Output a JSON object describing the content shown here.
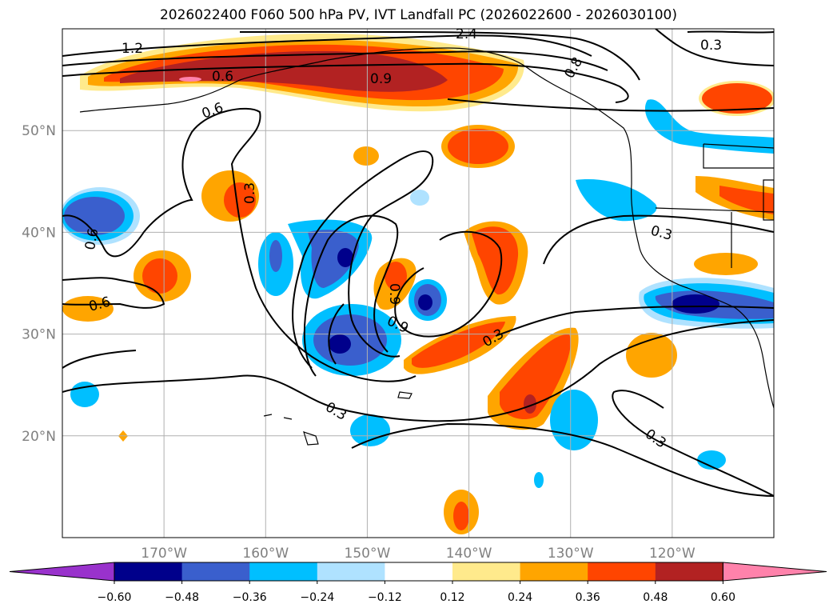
{
  "title": "2026022400 F060 500 hPa PV, IVT Landfall PC (2026022600 - 2026030100)",
  "map": {
    "lon_range": [
      -180,
      -110
    ],
    "lat_range": [
      10,
      60
    ],
    "grid_lines": true,
    "lon_ticks": [
      {
        "lon": -170,
        "label": "170°W"
      },
      {
        "lon": -160,
        "label": "160°W"
      },
      {
        "lon": -150,
        "label": "150°W"
      },
      {
        "lon": -140,
        "label": "140°W"
      },
      {
        "lon": -130,
        "label": "130°W"
      },
      {
        "lon": -120,
        "label": "120°W"
      }
    ],
    "lat_ticks": [
      {
        "lat": 50,
        "label": "50°N"
      },
      {
        "lat": 40,
        "label": "40°N"
      },
      {
        "lat": 30,
        "label": "30°N"
      },
      {
        "lat": 20,
        "label": "20°N"
      }
    ],
    "contour_labels": [
      "1.2",
      "2.4",
      "0.3",
      "0.6",
      "0.9",
      "0.6",
      "0.3",
      "0.6",
      "0.6",
      "0.9",
      "0.9",
      "0.3",
      "0.3",
      "0.3",
      "0.3",
      "0.8"
    ]
  },
  "colorbar": {
    "colors": [
      "#9932cc",
      "#00008b",
      "#3a5fcd",
      "#00bfff",
      "#afe2ff",
      "#ffffff",
      "#ffea8c",
      "#ffa500",
      "#ff4500",
      "#b22222",
      "#ff82ab"
    ],
    "labels": [
      "−0.60",
      "−0.48",
      "−0.36",
      "−0.24",
      "−0.12",
      "0.12",
      "0.24",
      "0.36",
      "0.48",
      "0.60"
    ]
  },
  "colors": {
    "grid": "#b0b0b0",
    "tick_label": "#808080",
    "contour": "#000000"
  }
}
